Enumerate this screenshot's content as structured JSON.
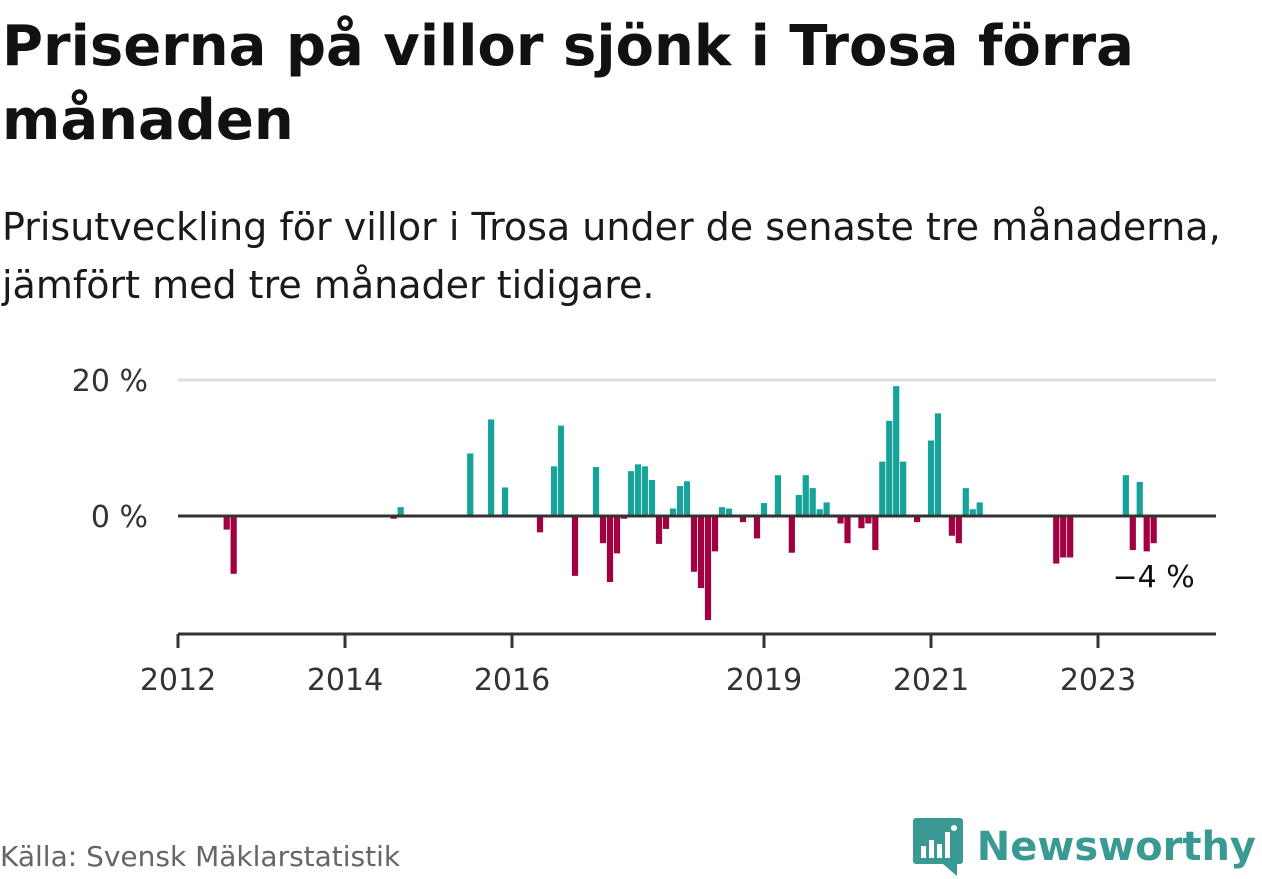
{
  "title": "Priserna på villor sjönk i Trosa förra månaden",
  "subtitle": "Prisutveckling för villor i Trosa under de senaste tre månaderna, jämfört med tre månader tidigare.",
  "source": "Källa: Svensk Mäklarstatistik",
  "brand": {
    "name": "Newsworthy",
    "icon": "newsworthy-logo-icon",
    "color": "#3a9a93"
  },
  "colors": {
    "positive": "#17a39a",
    "negative": "#a30041",
    "grid": "#dddddd",
    "axis": "#333333"
  },
  "chart_data": {
    "type": "bar",
    "ylim": [
      -17,
      20
    ],
    "y_ticks": [
      {
        "value": 0,
        "label": "0 %"
      },
      {
        "value": 20,
        "label": "20 %"
      }
    ],
    "x_range": [
      "2012-01",
      "2024-06"
    ],
    "x_ticks": [
      {
        "date": "2012-01",
        "label": "2012"
      },
      {
        "date": "2014-01",
        "label": "2014"
      },
      {
        "date": "2016-01",
        "label": "2016"
      },
      {
        "date": "2019-01",
        "label": "2019"
      },
      {
        "date": "2021-01",
        "label": "2021"
      },
      {
        "date": "2023-01",
        "label": "2023"
      }
    ],
    "end_label": "−4 %",
    "series": [
      {
        "values": [
          [
            "2012-08",
            -2
          ],
          [
            "2012-09",
            -8.5
          ],
          [
            "2014-08",
            -0.4
          ],
          [
            "2014-09",
            1.3
          ],
          [
            "2015-07",
            9.2
          ],
          [
            "2015-10",
            14.2
          ],
          [
            "2015-12",
            4.2
          ],
          [
            "2016-05",
            -2.4
          ],
          [
            "2016-07",
            7.3
          ],
          [
            "2016-08",
            13.3
          ],
          [
            "2016-10",
            -8.8
          ],
          [
            "2017-01",
            7.2
          ],
          [
            "2017-02",
            -4
          ],
          [
            "2017-03",
            -9.7
          ],
          [
            "2017-04",
            -5.5
          ],
          [
            "2017-05",
            -0.4
          ],
          [
            "2017-06",
            6.6
          ],
          [
            "2017-07",
            7.6
          ],
          [
            "2017-08",
            7.3
          ],
          [
            "2017-09",
            5.3
          ],
          [
            "2017-10",
            -4.1
          ],
          [
            "2017-11",
            -1.9
          ],
          [
            "2017-12",
            1.1
          ],
          [
            "2018-01",
            4.4
          ],
          [
            "2018-02",
            5.1
          ],
          [
            "2018-03",
            -8.2
          ],
          [
            "2018-04",
            -10.6
          ],
          [
            "2018-05",
            -15.3
          ],
          [
            "2018-06",
            -5.2
          ],
          [
            "2018-07",
            1.3
          ],
          [
            "2018-08",
            1.1
          ],
          [
            "2018-10",
            -0.9
          ],
          [
            "2018-12",
            -3.3
          ],
          [
            "2019-01",
            1.9
          ],
          [
            "2019-03",
            6
          ],
          [
            "2019-05",
            -5.4
          ],
          [
            "2019-06",
            3.1
          ],
          [
            "2019-07",
            6
          ],
          [
            "2019-08",
            4.1
          ],
          [
            "2019-09",
            1
          ],
          [
            "2019-10",
            2
          ],
          [
            "2019-12",
            -1.1
          ],
          [
            "2020-01",
            -4
          ],
          [
            "2020-03",
            -1.8
          ],
          [
            "2020-04",
            -1.1
          ],
          [
            "2020-05",
            -5
          ],
          [
            "2020-06",
            8
          ],
          [
            "2020-07",
            14
          ],
          [
            "2020-08",
            19.1
          ],
          [
            "2020-09",
            8
          ],
          [
            "2020-11",
            -0.9
          ],
          [
            "2021-01",
            11.1
          ],
          [
            "2021-02",
            15.1
          ],
          [
            "2021-04",
            -2.9
          ],
          [
            "2021-05",
            -4
          ],
          [
            "2021-06",
            4.1
          ],
          [
            "2021-07",
            1
          ],
          [
            "2021-08",
            2
          ],
          [
            "2022-07",
            -7
          ],
          [
            "2022-08",
            -6.1
          ],
          [
            "2022-09",
            -6.1
          ],
          [
            "2023-05",
            6
          ],
          [
            "2023-06",
            -5
          ],
          [
            "2023-07",
            5
          ],
          [
            "2023-08",
            -5.2
          ],
          [
            "2023-09",
            -4
          ]
        ]
      }
    ]
  }
}
